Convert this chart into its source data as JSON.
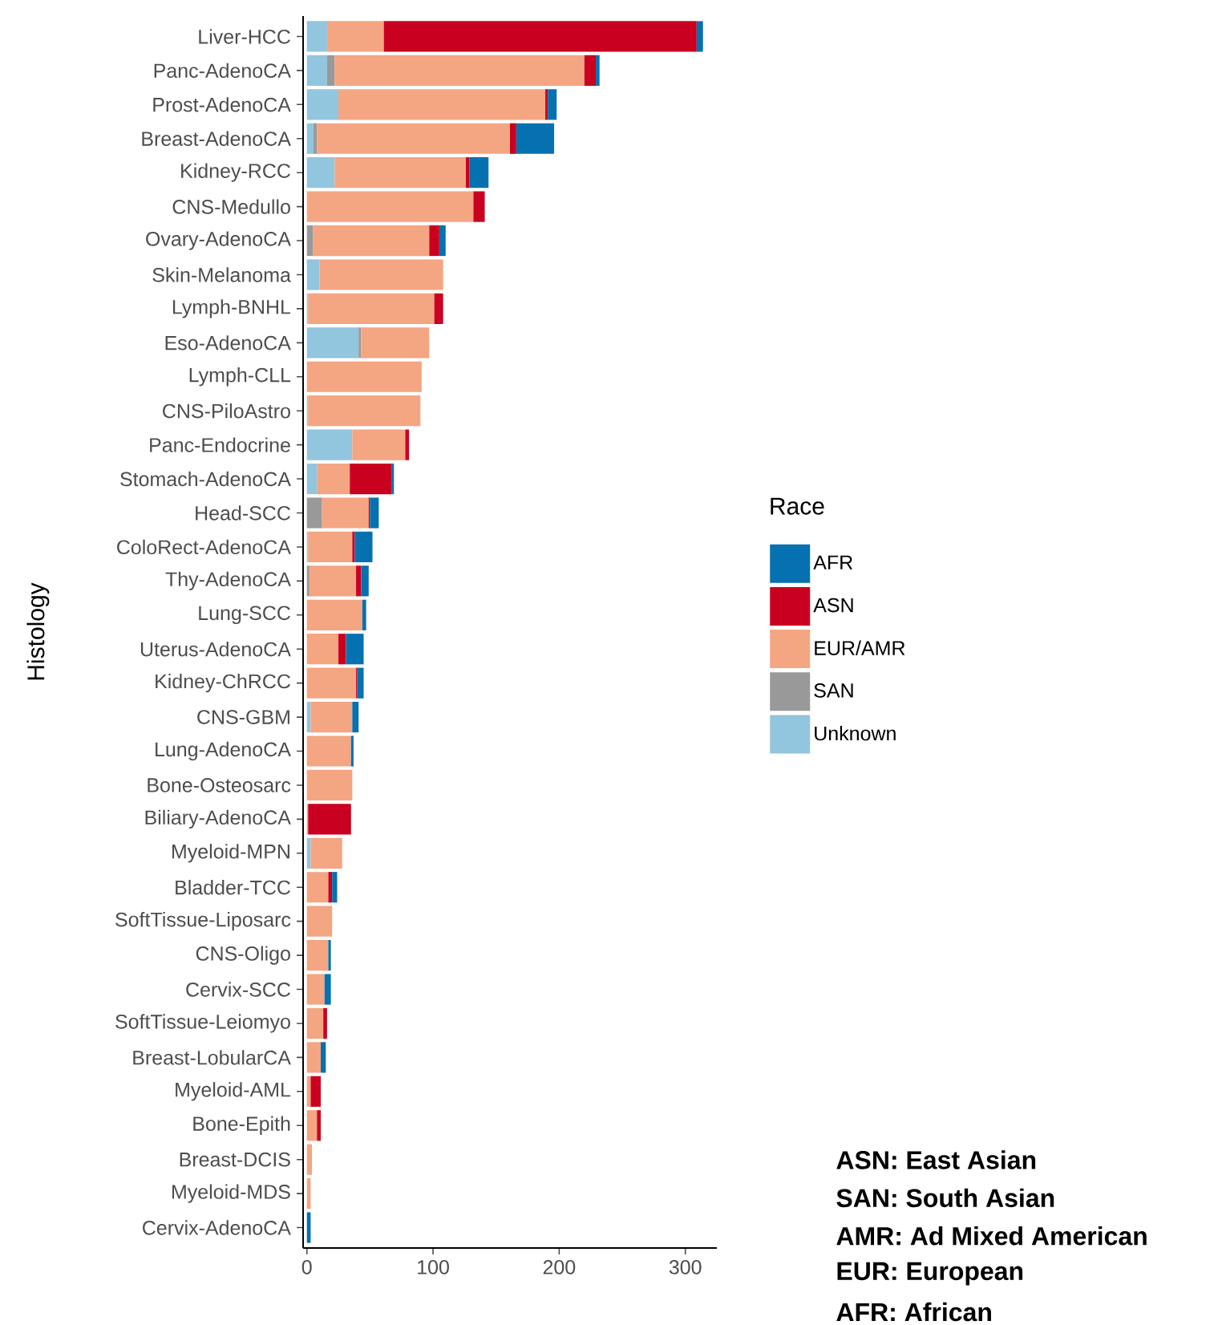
{
  "chart_data": {
    "type": "bar",
    "orientation": "horizontal",
    "stacked": true,
    "ylabel": "Histology",
    "legend_title": "Race",
    "legend": "right",
    "grid": false,
    "categories": [
      "Liver-HCC",
      "Panc-AdenoCA",
      "Prost-AdenoCA",
      "Breast-AdenoCA",
      "Kidney-RCC",
      "CNS-Medullo",
      "Ovary-AdenoCA",
      "Skin-Melanoma",
      "Lymph-BNHL",
      "Eso-AdenoCA",
      "Lymph-CLL",
      "CNS-PiloAstro",
      "Panc-Endocrine",
      "Stomach-AdenoCA",
      "Head-SCC",
      "ColoRect-AdenoCA",
      "Thy-AdenoCA",
      "Lung-SCC",
      "Uterus-AdenoCA",
      "Kidney-ChRCC",
      "CNS-GBM",
      "Lung-AdenoCA",
      "Bone-Osteosarc",
      "Biliary-AdenoCA",
      "Myeloid-MPN",
      "Bladder-TCC",
      "SoftTissue-Liposarc",
      "CNS-Oligo",
      "Cervix-SCC",
      "SoftTissue-Leiomyo",
      "Breast-LobularCA",
      "Myeloid-AML",
      "Bone-Epith",
      "Breast-DCIS",
      "Myeloid-MDS",
      "Cervix-AdenoCA"
    ],
    "xlim": [
      -3,
      325
    ],
    "xticks": [
      0,
      100,
      200,
      300
    ],
    "series": [
      {
        "name": "Unknown",
        "color": "#92c5de",
        "values": [
          16,
          16,
          25,
          5,
          22,
          null,
          null,
          10,
          1,
          41,
          null,
          1,
          36,
          8,
          null,
          1,
          null,
          null,
          null,
          null,
          3,
          null,
          null,
          null,
          3,
          null,
          null,
          null,
          null,
          null,
          null,
          null,
          null,
          null,
          null,
          null
        ]
      },
      {
        "name": "SAN",
        "color": "#999999",
        "values": [
          null,
          6,
          null,
          3,
          null,
          null,
          5,
          null,
          null,
          2,
          null,
          null,
          null,
          null,
          12,
          null,
          2,
          null,
          null,
          null,
          null,
          null,
          null,
          null,
          null,
          null,
          null,
          null,
          null,
          null,
          null,
          null,
          null,
          null,
          null,
          null
        ]
      },
      {
        "name": "EUR/AMR",
        "color": "#f4a582",
        "values": [
          45,
          198,
          164,
          153,
          104,
          132,
          92,
          98,
          100,
          54,
          91,
          89,
          42,
          26,
          37,
          35,
          37,
          44,
          25,
          39,
          33,
          35,
          36,
          1,
          25,
          17,
          20,
          17,
          14,
          13,
          11,
          3,
          8,
          4,
          3,
          null
        ]
      },
      {
        "name": "ASN",
        "color": "#ca0020",
        "values": [
          248,
          9,
          2,
          5,
          3,
          9,
          8,
          null,
          7,
          null,
          null,
          null,
          3,
          33,
          1,
          2,
          4,
          null,
          6,
          1,
          null,
          null,
          null,
          34,
          null,
          3,
          null,
          null,
          null,
          3,
          null,
          8,
          3,
          null,
          null,
          null
        ]
      },
      {
        "name": "AFR",
        "color": "#0571b0",
        "values": [
          5,
          3,
          7,
          30,
          15,
          null,
          5,
          null,
          null,
          null,
          null,
          null,
          null,
          2,
          7,
          14,
          6,
          3,
          14,
          5,
          5,
          2,
          null,
          null,
          null,
          4,
          null,
          2,
          5,
          null,
          4,
          null,
          null,
          null,
          null,
          3
        ]
      }
    ],
    "annotations": [
      "ASN: East Asian",
      "SAN: South Asian",
      "AMR: Ad Mixed American",
      "EUR: European",
      "AFR: African"
    ]
  }
}
